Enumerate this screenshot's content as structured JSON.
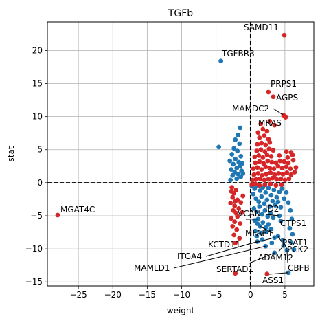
{
  "chart_data": {
    "type": "scatter",
    "title": "TGFb",
    "xlabel": "weight",
    "ylabel": "stat",
    "xlim": [
      -29.5,
      9.2
    ],
    "ylim": [
      -15.6,
      24.3
    ],
    "xticks": [
      -25,
      -20,
      -15,
      -10,
      -5,
      0,
      5
    ],
    "yticks": [
      -15,
      -10,
      -5,
      0,
      5,
      10,
      15,
      20
    ],
    "grid": true,
    "reference_lines": {
      "x": 0,
      "y": 0
    },
    "colors": {
      "positive_weight": "#d62728",
      "negative_weight": "#1f77b4"
    },
    "labeled_points": [
      {
        "label": "SAMD11",
        "x": 4.9,
        "y": 22.3,
        "sign": "up"
      },
      {
        "label": "TGFBR3",
        "x": -4.3,
        "y": 18.4,
        "sign": "down"
      },
      {
        "label": "PRPS1",
        "x": 2.6,
        "y": 13.7,
        "sign": "up"
      },
      {
        "label": "AGPS",
        "x": 3.3,
        "y": 13.0,
        "sign": "up"
      },
      {
        "label": "MAMDC2",
        "x": 4.8,
        "y": 10.2,
        "sign": "up"
      },
      {
        "label": "MRAS",
        "x": 5.1,
        "y": 9.9,
        "sign": "up"
      },
      {
        "label": "MGAT4C",
        "x": -28.0,
        "y": -4.9,
        "sign": "up"
      },
      {
        "label": "VCAN",
        "x": 1.1,
        "y": -5.5,
        "sign": "down"
      },
      {
        "label": "ID2",
        "x": 4.2,
        "y": -5.0,
        "sign": "down"
      },
      {
        "label": "CTPS1",
        "x": 4.4,
        "y": -5.8,
        "sign": "down"
      },
      {
        "label": "MFAP4",
        "x": 1.4,
        "y": -6.6,
        "sign": "down"
      },
      {
        "label": "PSAT1",
        "x": 4.0,
        "y": -8.1,
        "sign": "down"
      },
      {
        "label": "KCTD11",
        "x": 3.5,
        "y": -8.3,
        "sign": "down"
      },
      {
        "label": "PCK2",
        "x": 4.7,
        "y": -8.7,
        "sign": "down"
      },
      {
        "label": "ITGA4",
        "x": 1.0,
        "y": -8.9,
        "sign": "down"
      },
      {
        "label": "ADAM12",
        "x": 4.8,
        "y": -9.5,
        "sign": "down"
      },
      {
        "label": "MAMLD1",
        "x": 2.2,
        "y": -9.6,
        "sign": "down"
      },
      {
        "label": "CBFB",
        "x": 5.3,
        "y": -10.2,
        "sign": "down"
      },
      {
        "label": "SERTAD1",
        "x": 3.5,
        "y": -10.6,
        "sign": "down"
      },
      {
        "label": "ASS1",
        "x": 5.5,
        "y": -13.6,
        "sign": "down"
      }
    ],
    "points_positive_weight": [
      [
        -2.2,
        -13.7
      ],
      [
        2.4,
        -13.8
      ],
      [
        -2.8,
        -1.3
      ],
      [
        -2.4,
        -1.6
      ],
      [
        -2.1,
        -1.1
      ],
      [
        -2.6,
        -2.2
      ],
      [
        -2.2,
        -2.8
      ],
      [
        -2.9,
        -3.1
      ],
      [
        -2.3,
        -3.5
      ],
      [
        -1.9,
        -2.6
      ],
      [
        -2.5,
        -4.2
      ],
      [
        -2.1,
        -4.6
      ],
      [
        -1.7,
        -3.9
      ],
      [
        -2.8,
        -5.4
      ],
      [
        -2.3,
        -5.9
      ],
      [
        -1.9,
        -5.1
      ],
      [
        -2.6,
        -6.6
      ],
      [
        -2.0,
        -7.1
      ],
      [
        -2.4,
        -7.9
      ],
      [
        -2.2,
        -9.1
      ],
      [
        -1.6,
        -8.4
      ],
      [
        -1.4,
        -3.0
      ],
      [
        -1.5,
        -6.2
      ],
      [
        -1.1,
        -2.0
      ],
      [
        -2.7,
        -0.7
      ],
      [
        -1.2,
        -4.5
      ],
      [
        0.3,
        0.4
      ],
      [
        0.8,
        0.5
      ],
      [
        1.4,
        0.6
      ],
      [
        2.0,
        0.4
      ],
      [
        2.6,
        0.5
      ],
      [
        3.2,
        0.7
      ],
      [
        3.8,
        0.5
      ],
      [
        4.4,
        0.6
      ],
      [
        5.0,
        0.4
      ],
      [
        5.6,
        0.6
      ],
      [
        0.5,
        1.2
      ],
      [
        1.1,
        1.4
      ],
      [
        1.7,
        1.1
      ],
      [
        2.3,
        1.3
      ],
      [
        2.9,
        1.5
      ],
      [
        3.5,
        1.2
      ],
      [
        4.1,
        1.4
      ],
      [
        4.7,
        1.3
      ],
      [
        5.3,
        1.5
      ],
      [
        5.9,
        1.2
      ],
      [
        6.4,
        1.6
      ],
      [
        0.4,
        2.1
      ],
      [
        1.0,
        2.3
      ],
      [
        1.6,
        2.0
      ],
      [
        2.2,
        2.4
      ],
      [
        2.8,
        2.2
      ],
      [
        3.4,
        2.1
      ],
      [
        4.0,
        2.5
      ],
      [
        4.6,
        2.2
      ],
      [
        5.2,
        2.4
      ],
      [
        5.8,
        2.1
      ],
      [
        6.6,
        2.3
      ],
      [
        0.7,
        3.0
      ],
      [
        1.3,
        3.2
      ],
      [
        1.9,
        2.9
      ],
      [
        2.5,
        3.3
      ],
      [
        3.1,
        3.1
      ],
      [
        3.7,
        3.0
      ],
      [
        4.3,
        3.3
      ],
      [
        4.9,
        3.2
      ],
      [
        5.5,
        3.0
      ],
      [
        6.2,
        3.4
      ],
      [
        0.6,
        3.9
      ],
      [
        1.2,
        4.1
      ],
      [
        1.8,
        3.8
      ],
      [
        2.4,
        4.2
      ],
      [
        3.0,
        4.0
      ],
      [
        4.2,
        4.1
      ],
      [
        5.4,
        3.8
      ],
      [
        6.1,
        4.2
      ],
      [
        0.9,
        4.8
      ],
      [
        1.5,
        5.0
      ],
      [
        2.1,
        4.7
      ],
      [
        2.7,
        5.1
      ],
      [
        3.3,
        4.9
      ],
      [
        5.2,
        4.7
      ],
      [
        5.9,
        4.6
      ],
      [
        1.0,
        5.8
      ],
      [
        1.6,
        6.0
      ],
      [
        2.2,
        5.7
      ],
      [
        2.8,
        6.1
      ],
      [
        1.3,
        6.8
      ],
      [
        2.0,
        7.1
      ],
      [
        2.6,
        6.6
      ],
      [
        1.1,
        7.6
      ],
      [
        1.8,
        8.1
      ],
      [
        2.4,
        7.8
      ],
      [
        1.5,
        8.9
      ],
      [
        2.8,
        9.3
      ],
      [
        3.5,
        8.7
      ],
      [
        0.2,
        -0.3
      ],
      [
        0.7,
        -0.2
      ],
      [
        1.3,
        -0.4
      ],
      [
        2.1,
        -0.3
      ],
      [
        2.9,
        -0.2
      ],
      [
        3.7,
        -0.4
      ],
      [
        4.5,
        -0.3
      ]
    ],
    "points_negative_weight": [
      [
        -1.5,
        8.3
      ],
      [
        -1.8,
        7.2
      ],
      [
        -2.2,
        6.5
      ],
      [
        -1.6,
        5.9
      ],
      [
        -2.4,
        5.2
      ],
      [
        -4.6,
        5.4
      ],
      [
        -1.9,
        4.8
      ],
      [
        -2.7,
        4.3
      ],
      [
        -1.4,
        4.0
      ],
      [
        -2.2,
        3.6
      ],
      [
        -3.0,
        3.3
      ],
      [
        -1.7,
        3.1
      ],
      [
        -2.5,
        2.8
      ],
      [
        -1.5,
        2.5
      ],
      [
        -2.0,
        2.2
      ],
      [
        -2.8,
        2.0
      ],
      [
        -1.3,
        1.8
      ],
      [
        -2.3,
        1.6
      ],
      [
        -1.8,
        1.3
      ],
      [
        -2.6,
        1.1
      ],
      [
        -1.4,
        0.9
      ],
      [
        -2.0,
        0.6
      ],
      [
        -2.9,
        0.4
      ],
      [
        -1.1,
        1.4
      ],
      [
        -1.2,
        2.9
      ],
      [
        0.2,
        -0.5
      ],
      [
        0.6,
        -0.9
      ],
      [
        1.0,
        -0.4
      ],
      [
        1.4,
        -1.2
      ],
      [
        1.8,
        -0.7
      ],
      [
        2.2,
        -1.5
      ],
      [
        2.6,
        -0.8
      ],
      [
        3.0,
        -1.9
      ],
      [
        3.4,
        -1.1
      ],
      [
        3.8,
        -2.2
      ],
      [
        4.2,
        -1.4
      ],
      [
        4.6,
        -0.9
      ],
      [
        0.4,
        -1.7
      ],
      [
        0.8,
        -2.4
      ],
      [
        1.2,
        -2.9
      ],
      [
        1.6,
        -2.1
      ],
      [
        2.0,
        -3.2
      ],
      [
        2.4,
        -2.6
      ],
      [
        2.8,
        -3.6
      ],
      [
        3.2,
        -2.8
      ],
      [
        3.6,
        -3.4
      ],
      [
        4.0,
        -2.9
      ],
      [
        4.4,
        -3.7
      ],
      [
        0.5,
        -3.9
      ],
      [
        0.9,
        -4.4
      ],
      [
        1.3,
        -3.6
      ],
      [
        1.7,
        -4.8
      ],
      [
        2.1,
        -4.2
      ],
      [
        2.5,
        -5.1
      ],
      [
        2.9,
        -4.6
      ],
      [
        3.3,
        -5.3
      ],
      [
        0.6,
        -5.7
      ],
      [
        1.0,
        -6.2
      ],
      [
        1.8,
        -6.0
      ],
      [
        2.2,
        -6.8
      ],
      [
        2.6,
        -6.3
      ],
      [
        3.0,
        -7.0
      ],
      [
        0.7,
        -7.3
      ],
      [
        1.5,
        -7.6
      ],
      [
        2.3,
        -7.4
      ],
      [
        0.9,
        -8.1
      ],
      [
        1.7,
        -8.6
      ],
      [
        5.5,
        -3.0
      ],
      [
        5.8,
        -4.2
      ],
      [
        6.0,
        -5.5
      ],
      [
        5.7,
        -6.9
      ],
      [
        6.1,
        -7.8
      ],
      [
        5.9,
        -9.0
      ],
      [
        6.3,
        -10.1
      ],
      [
        3.1,
        -9.1
      ],
      [
        4.9,
        -2.4
      ],
      [
        5.2,
        -1.5
      ]
    ]
  }
}
